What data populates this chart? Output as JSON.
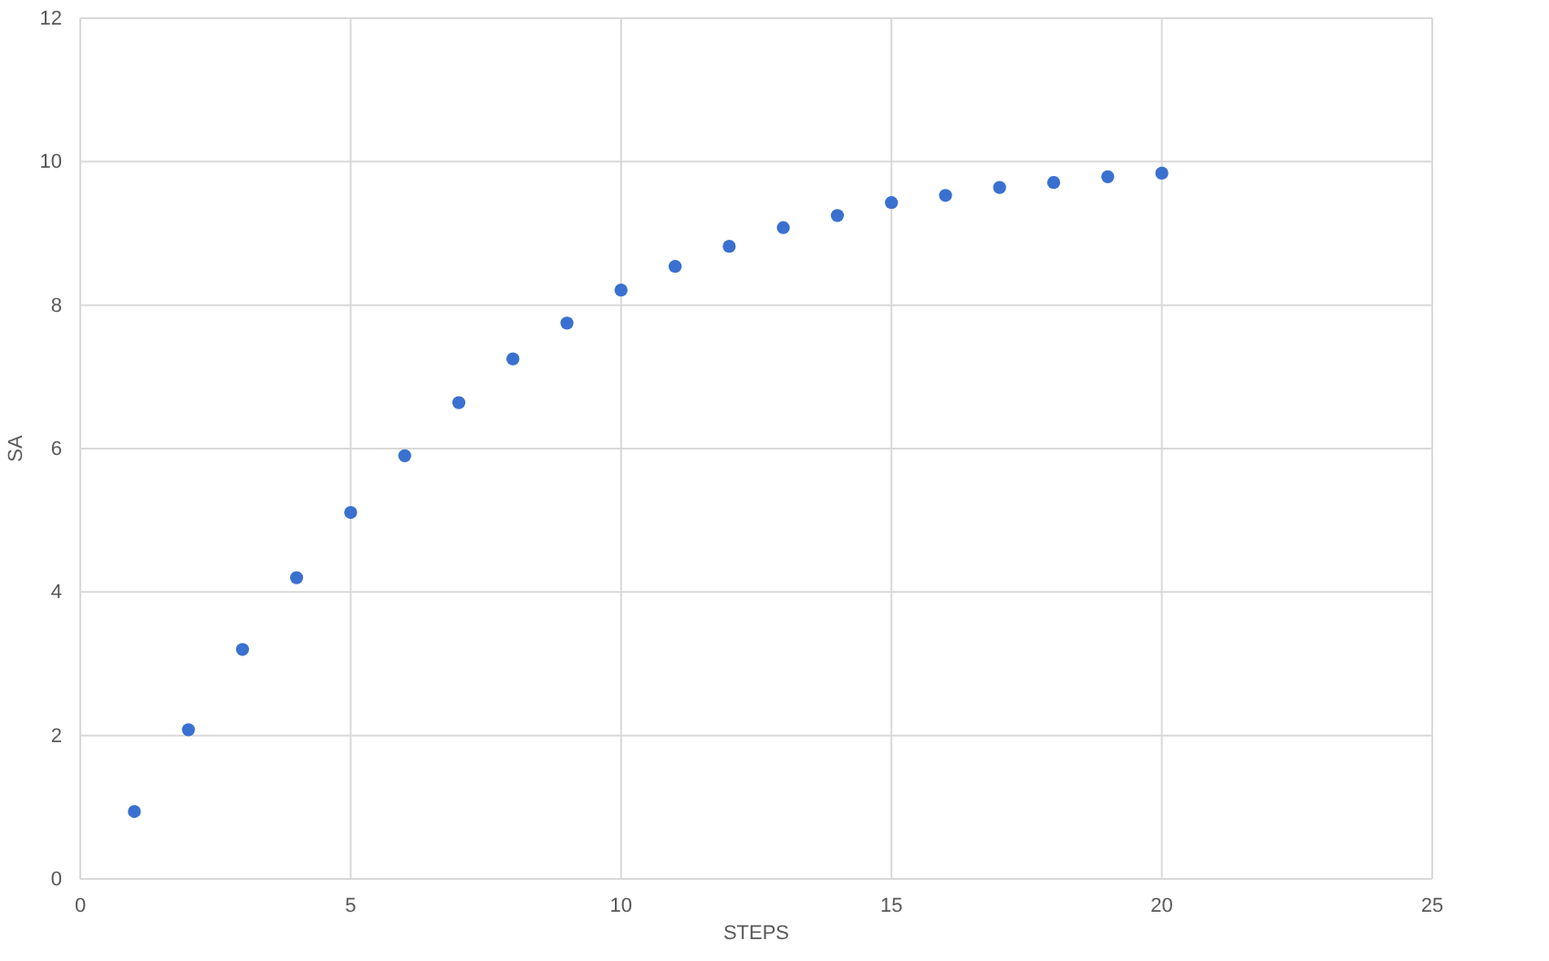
{
  "chart_data": {
    "type": "scatter",
    "xlabel": "STEPS",
    "ylabel": "SA",
    "x": [
      1,
      2,
      3,
      4,
      5,
      6,
      7,
      8,
      9,
      10,
      11,
      12,
      13,
      14,
      15,
      16,
      17,
      18,
      19,
      20
    ],
    "series": [
      {
        "color": "#3a70d0",
        "values": [
          0.94,
          2.08,
          3.2,
          4.2,
          5.11,
          5.9,
          6.64,
          7.25,
          7.75,
          8.21,
          8.54,
          8.82,
          9.08,
          9.25,
          9.43,
          9.53,
          9.64,
          9.71,
          9.79,
          9.84
        ]
      }
    ],
    "xlim": [
      0,
      25
    ],
    "xticks": [
      0,
      5,
      10,
      15,
      20,
      25
    ],
    "ylim": [
      0,
      12
    ],
    "yticks": [
      0,
      2,
      4,
      6,
      8,
      10,
      12
    ],
    "grid": true,
    "marker": "circle"
  }
}
